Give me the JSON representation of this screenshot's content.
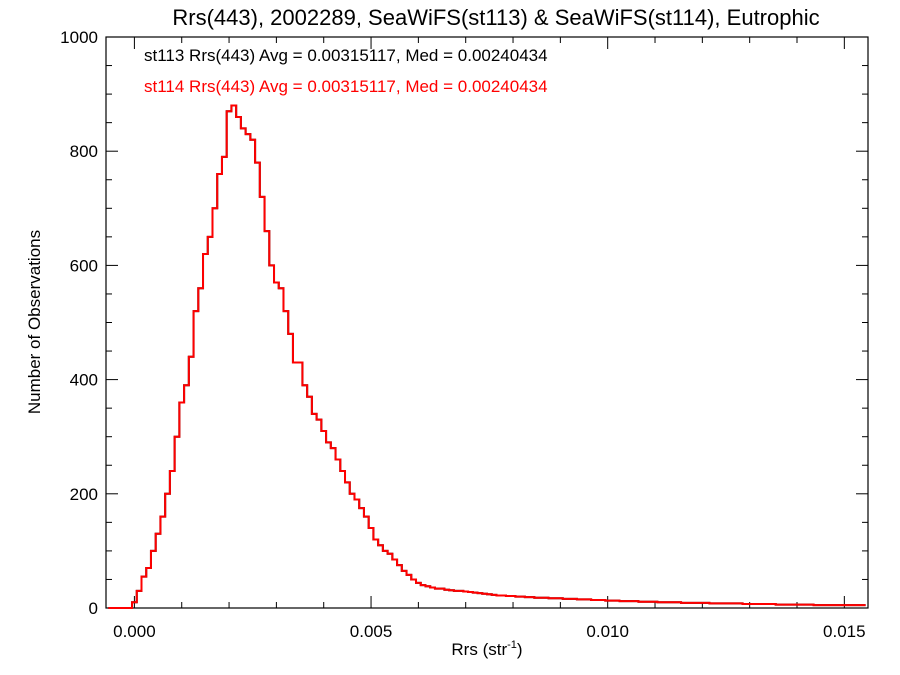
{
  "chart_data": {
    "type": "line",
    "style": "step-histogram",
    "title": "Rrs(443), 2002289, SeaWiFS(st113) & SeaWiFS(st114), Eutrophic",
    "xlabel_base": "Rrs (str",
    "xlabel_sup": "-1",
    "xlabel_close": ")",
    "ylabel": "Number of Observations",
    "xlim": [
      -0.0006,
      0.0155
    ],
    "ylim": [
      0,
      1000
    ],
    "xticks": [
      0.0,
      0.005,
      0.01,
      0.015
    ],
    "xtick_labels": [
      "0.000",
      "0.005",
      "0.010",
      "0.015"
    ],
    "yticks": [
      0,
      200,
      400,
      600,
      800,
      1000
    ],
    "ytick_labels": [
      "0",
      "200",
      "400",
      "600",
      "800",
      "1000"
    ],
    "grid": false,
    "bin_width": 0.0001,
    "x": [
      -0.0005,
      -0.0004,
      -0.0003,
      -0.0002,
      -0.0001,
      0.0,
      0.0001,
      0.0002,
      0.0003,
      0.0004,
      0.0005,
      0.0006,
      0.0007,
      0.0008,
      0.0009,
      0.001,
      0.0011,
      0.0012,
      0.0013,
      0.0014,
      0.0015,
      0.0016,
      0.0017,
      0.0018,
      0.0019,
      0.002,
      0.0021,
      0.0022,
      0.0023,
      0.0024,
      0.0025,
      0.0026,
      0.0027,
      0.0028,
      0.0029,
      0.003,
      0.0031,
      0.0032,
      0.0033,
      0.0034,
      0.0035,
      0.0036,
      0.0037,
      0.0038,
      0.0039,
      0.004,
      0.0041,
      0.0042,
      0.0043,
      0.0044,
      0.0045,
      0.0046,
      0.0047,
      0.0048,
      0.0049,
      0.005,
      0.0051,
      0.0052,
      0.0053,
      0.0054,
      0.0055,
      0.0056,
      0.0057,
      0.0058,
      0.0059,
      0.006,
      0.0061,
      0.0062,
      0.0063,
      0.0064,
      0.0065,
      0.0066,
      0.0067,
      0.0068,
      0.0069,
      0.007,
      0.0071,
      0.0072,
      0.0073,
      0.0074,
      0.0075,
      0.0076,
      0.0077,
      0.0078,
      0.0079,
      0.008,
      0.0081,
      0.0082,
      0.0083,
      0.0084,
      0.0085,
      0.0086,
      0.0087,
      0.0088,
      0.0089,
      0.009,
      0.0091,
      0.0092,
      0.0093,
      0.0094,
      0.0095,
      0.0096,
      0.0097,
      0.0098,
      0.0099,
      0.01,
      0.0101,
      0.0102,
      0.0103,
      0.0104,
      0.0105,
      0.0106,
      0.0107,
      0.0108,
      0.0109,
      0.011,
      0.0111,
      0.0112,
      0.0113,
      0.0114,
      0.0115,
      0.0116,
      0.0117,
      0.0118,
      0.0119,
      0.012,
      0.0121,
      0.0122,
      0.0123,
      0.0124,
      0.0125,
      0.0126,
      0.0127,
      0.0128,
      0.0129,
      0.013,
      0.0131,
      0.0132,
      0.0133,
      0.0134,
      0.0135,
      0.0136,
      0.0137,
      0.0138,
      0.0139,
      0.014,
      0.0141,
      0.0142,
      0.0143,
      0.0144,
      0.0145,
      0.0146,
      0.0147,
      0.0148,
      0.0149,
      0.015,
      0.0151,
      0.0152,
      0.0153,
      0.0154
    ],
    "series": [
      {
        "name": "st113",
        "color": "#000000",
        "stat_text": "st113 Rrs(443) Avg = 0.00315117, Med = 0.00240434",
        "values": [
          0,
          0,
          0,
          0,
          0,
          10,
          30,
          55,
          70,
          100,
          130,
          160,
          200,
          240,
          300,
          360,
          390,
          440,
          520,
          560,
          620,
          650,
          700,
          760,
          790,
          870,
          880,
          860,
          840,
          830,
          820,
          780,
          720,
          660,
          600,
          570,
          560,
          520,
          480,
          430,
          430,
          390,
          370,
          340,
          330,
          310,
          290,
          280,
          260,
          240,
          220,
          200,
          190,
          175,
          160,
          140,
          120,
          110,
          100,
          95,
          85,
          75,
          65,
          58,
          50,
          44,
          40,
          38,
          36,
          34,
          34,
          32,
          31,
          30,
          30,
          29,
          28,
          27,
          26,
          25,
          24,
          23,
          22,
          22,
          21,
          21,
          20,
          20,
          19,
          19,
          18,
          18,
          18,
          17,
          17,
          17,
          16,
          16,
          16,
          15,
          15,
          15,
          14,
          14,
          14,
          13,
          13,
          13,
          12,
          12,
          12,
          12,
          11,
          11,
          11,
          11,
          10,
          10,
          10,
          10,
          10,
          9,
          9,
          9,
          9,
          9,
          9,
          8,
          8,
          8,
          8,
          8,
          8,
          8,
          7,
          7,
          7,
          7,
          7,
          7,
          7,
          6,
          6,
          6,
          6,
          6,
          6,
          6,
          6,
          5,
          5,
          5,
          5,
          5,
          5,
          5,
          5,
          5,
          5,
          5
        ]
      },
      {
        "name": "st114",
        "color": "#ff0000",
        "stat_text": "st114 Rrs(443) Avg = 0.00315117, Med = 0.00240434",
        "values": [
          0,
          0,
          0,
          0,
          0,
          10,
          30,
          55,
          70,
          100,
          130,
          160,
          200,
          240,
          300,
          360,
          390,
          440,
          520,
          560,
          620,
          650,
          700,
          760,
          790,
          870,
          880,
          860,
          840,
          830,
          820,
          780,
          720,
          660,
          600,
          570,
          560,
          520,
          480,
          430,
          430,
          390,
          370,
          340,
          330,
          310,
          290,
          280,
          260,
          240,
          220,
          200,
          190,
          175,
          160,
          140,
          120,
          110,
          100,
          95,
          85,
          75,
          65,
          58,
          50,
          44,
          40,
          38,
          36,
          34,
          34,
          32,
          31,
          30,
          30,
          29,
          28,
          27,
          26,
          25,
          24,
          23,
          22,
          22,
          21,
          21,
          20,
          20,
          19,
          19,
          18,
          18,
          18,
          17,
          17,
          17,
          16,
          16,
          16,
          15,
          15,
          15,
          14,
          14,
          14,
          13,
          13,
          13,
          12,
          12,
          12,
          12,
          11,
          11,
          11,
          11,
          10,
          10,
          10,
          10,
          10,
          9,
          9,
          9,
          9,
          9,
          9,
          8,
          8,
          8,
          8,
          8,
          8,
          8,
          7,
          7,
          7,
          7,
          7,
          7,
          7,
          6,
          6,
          6,
          6,
          6,
          6,
          6,
          6,
          5,
          5,
          5,
          5,
          5,
          5,
          5,
          5,
          5,
          5,
          5
        ]
      }
    ]
  }
}
